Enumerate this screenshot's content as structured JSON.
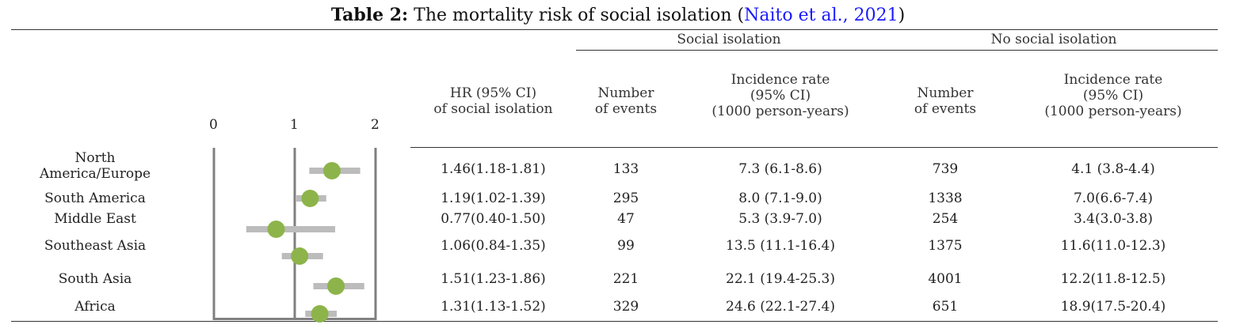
{
  "caption": {
    "label": "Table 2:",
    "text": " The mortality risk of social isolation (",
    "citation": "Naito et al., 2021",
    "close": ")"
  },
  "headers": {
    "group_social": "Social isolation",
    "group_no_social": "No social isolation",
    "hr": "HR (95% CI)\nof social isolation",
    "events_si": "Number\nof events",
    "incidence_si": "Incidence rate\n(95% CI)\n(1000 person-years)",
    "events_nsi": "Number\nof events",
    "incidence_nsi": "Incidence rate\n(95% CI)\n(1000 person-years)"
  },
  "axis_ticks": [
    "0",
    "1",
    "2"
  ],
  "colors": {
    "marker": "#8db44a",
    "ci_bar": "#bcbcbc",
    "axis_lines": "#7f7f7f",
    "citation": "#1a1aff"
  },
  "rows": [
    {
      "region": "North\nAmerica/Europe",
      "hr": "1.46(1.18-1.81)",
      "events_si": "133",
      "incidence_si": "7.3 (6.1-8.6)",
      "events_nsi": "739",
      "incidence_nsi": "4.1 (3.8-4.4)"
    },
    {
      "region": "South America",
      "hr": "1.19(1.02-1.39)",
      "events_si": "295",
      "incidence_si": "8.0 (7.1-9.0)",
      "events_nsi": "1338",
      "incidence_nsi": "7.0(6.6-7.4)"
    },
    {
      "region": "Middle East",
      "hr": "0.77(0.40-1.50)",
      "events_si": "47",
      "incidence_si": "5.3 (3.9-7.0)",
      "events_nsi": "254",
      "incidence_nsi": "3.4(3.0-3.8)"
    },
    {
      "region": "Southeast Asia",
      "hr": "1.06(0.84-1.35)",
      "events_si": "99",
      "incidence_si": "13.5 (11.1-16.4)",
      "events_nsi": "1375",
      "incidence_nsi": "11.6(11.0-12.3)"
    },
    {
      "region": "South Asia",
      "hr": "1.51(1.23-1.86)",
      "events_si": "221",
      "incidence_si": "22.1 (19.4-25.3)",
      "events_nsi": "4001",
      "incidence_nsi": "12.2(11.8-12.5)"
    },
    {
      "region": "Africa",
      "hr": "1.31(1.13-1.52)",
      "events_si": "329",
      "incidence_si": "24.6 (22.1-27.4)",
      "events_nsi": "651",
      "incidence_nsi": "18.9(17.5-20.4)"
    }
  ],
  "chart_data": {
    "type": "scatter",
    "xlim": [
      0,
      2
    ],
    "ticks": [
      0,
      1,
      2
    ],
    "reference_line": 1,
    "categories": [
      "North America/Europe",
      "South America",
      "Middle East",
      "Southeast Asia",
      "South Asia",
      "Africa"
    ],
    "hr": [
      1.46,
      1.19,
      0.77,
      1.06,
      1.51,
      1.31
    ],
    "ci_low": [
      1.18,
      1.02,
      0.4,
      0.84,
      1.23,
      1.13
    ],
    "ci_high": [
      1.81,
      1.39,
      1.5,
      1.35,
      1.86,
      1.52
    ]
  }
}
